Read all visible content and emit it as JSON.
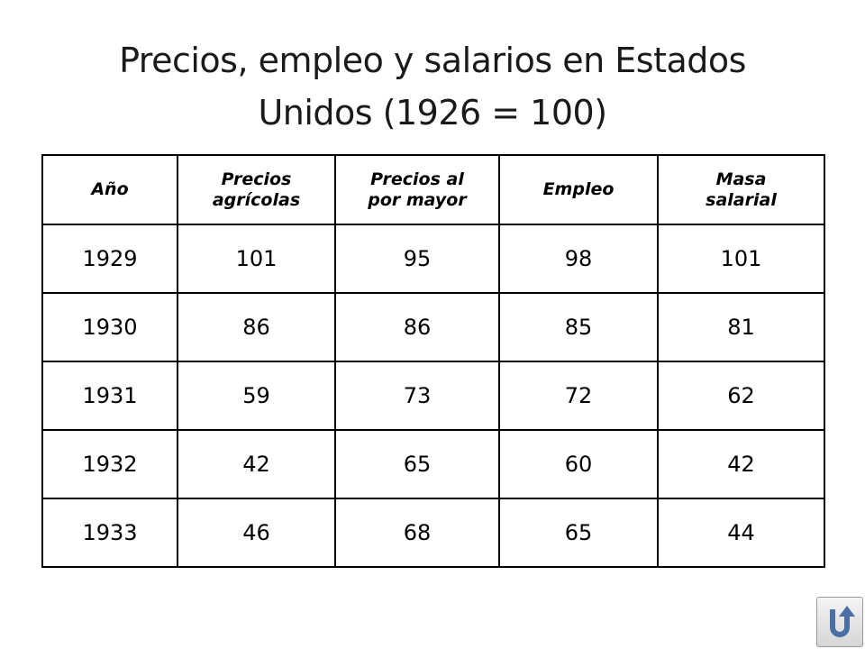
{
  "slide": {
    "title_line1": "Precios, empleo y salarios en Estados",
    "title_line2": "Unidos (1926 = 100)"
  },
  "table": {
    "headers": {
      "year": "Año",
      "agri_line1": "Precios",
      "agri_line2": "agrícolas",
      "whole_line1": "Precios al",
      "whole_line2": "por mayor",
      "employment": "Empleo",
      "wage_line1": "Masa",
      "wage_line2": "salarial"
    },
    "rows": [
      {
        "year": "1929",
        "agri": "101",
        "whole": "95",
        "emp": "98",
        "wage": "101"
      },
      {
        "year": "1930",
        "agri": "86",
        "whole": "86",
        "emp": "85",
        "wage": "81"
      },
      {
        "year": "1931",
        "agri": "59",
        "whole": "73",
        "emp": "72",
        "wage": "62"
      },
      {
        "year": "1932",
        "agri": "42",
        "whole": "65",
        "emp": "60",
        "wage": "42"
      },
      {
        "year": "1933",
        "agri": "46",
        "whole": "68",
        "emp": "65",
        "wage": "44"
      }
    ]
  },
  "nav": {
    "back_icon": "u-turn-back-icon",
    "icon_color": "#4a6fa5"
  }
}
